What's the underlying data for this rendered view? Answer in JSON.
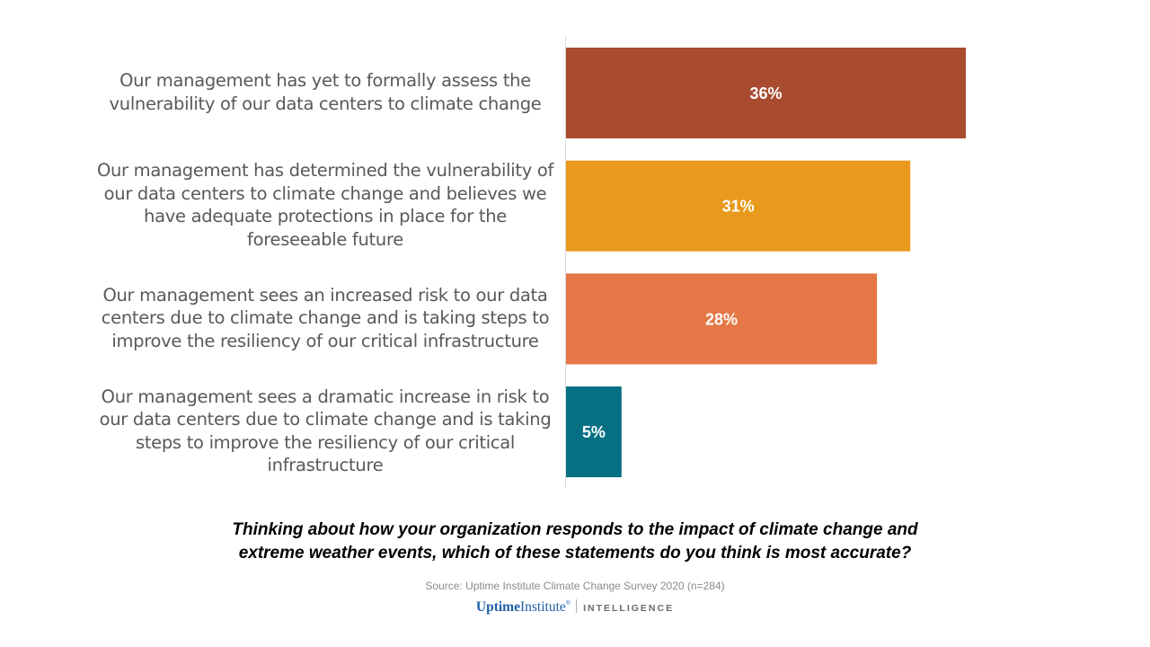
{
  "chart_data": {
    "type": "bar",
    "orientation": "horizontal",
    "categories": [
      "Our management has yet to formally assess the vulnerability of our data centers to climate change",
      "Our management has determined the vulnerability of our data centers to climate change and believes we have adequate protections in place for the foreseeable future",
      "Our management sees an increased risk to our data centers due to climate change and is taking steps to improve the resiliency of our critical infrastructure",
      "Our management sees a dramatic increase in risk to our data centers due to climate change and is taking steps to improve the resiliency of our critical infrastructure"
    ],
    "category_label_lines": [
      [
        "Our management has yet to formally assess the",
        "vulnerability of our data centers to climate change"
      ],
      [
        "Our management has determined the vulnerability of",
        "our data centers to climate change and believes we",
        "have adequate protections in place for the",
        "foreseeable future"
      ],
      [
        "Our management sees an increased risk to our data",
        "centers due to climate change and is taking steps to",
        "improve the resiliency of our critical infrastructure"
      ],
      [
        "Our management sees a dramatic increase in risk to",
        "our data centers due to climate change and is taking",
        "steps to improve the resiliency of our critical",
        "infrastructure"
      ]
    ],
    "values": [
      36,
      31,
      28,
      5
    ],
    "data_labels": [
      "36%",
      "31%",
      "28%",
      "5%"
    ],
    "colors": [
      "#a94b2f",
      "#e99a1c",
      "#e57746",
      "#057083"
    ],
    "unit": "%",
    "title": "Thinking about how your organization responds to the impact of climate change and extreme weather events, which of these statements do you think is most accurate?",
    "xlabel": "",
    "ylabel": "",
    "xlim": [
      0,
      36
    ],
    "grid": false,
    "legend": "none"
  },
  "question_lines": [
    "Thinking about how your organization responds to the impact of climate change and",
    "extreme weather events, which of these statements do you think is most accurate?"
  ],
  "source": "Source: Uptime Institute Climate Change Survey 2020 (n=284)",
  "logo": {
    "uptime": "Uptime",
    "institute": "Institute",
    "reg": "®",
    "intelligence": "INTELLIGENCE"
  }
}
